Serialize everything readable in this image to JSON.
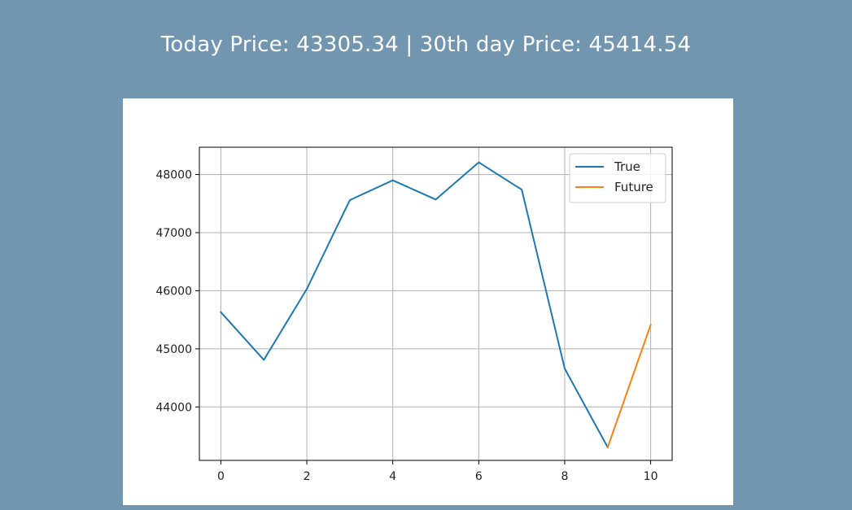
{
  "header": {
    "text": "Today Price: 43305.34 | 30th day Price: 45414.54"
  },
  "chart_data": {
    "type": "line",
    "xlim": [
      -0.5,
      10.5
    ],
    "ylim": [
      43080,
      48470
    ],
    "xticks": [
      0,
      2,
      4,
      6,
      8,
      10
    ],
    "yticks": [
      44000,
      45000,
      46000,
      47000,
      48000
    ],
    "grid": true,
    "legend_position": "top-right",
    "series": [
      {
        "name": "True",
        "color": "#1f77b4",
        "x": [
          0,
          1,
          2,
          3,
          4,
          5,
          6,
          7,
          8,
          9
        ],
        "y": [
          45630,
          44810,
          46030,
          47560,
          47900,
          47570,
          48210,
          47740,
          44660,
          43305.34
        ]
      },
      {
        "name": "Future",
        "color": "#ff7f0e",
        "x": [
          9,
          10
        ],
        "y": [
          43305.34,
          45414.54
        ]
      }
    ]
  }
}
